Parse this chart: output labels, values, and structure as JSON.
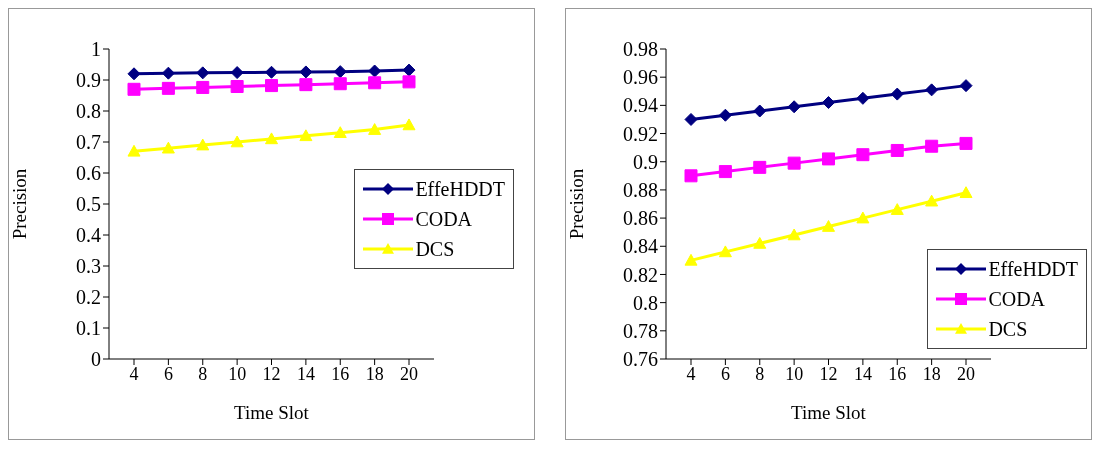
{
  "chart_data": [
    {
      "type": "line",
      "xlabel": "Time Slot",
      "ylabel": "Precision",
      "categories": [
        "4",
        "6",
        "8",
        "10",
        "12",
        "14",
        "16",
        "18",
        "20"
      ],
      "ylim": [
        0,
        1
      ],
      "yticks": [
        0,
        0.1,
        0.2,
        0.3,
        0.4,
        0.5,
        0.6,
        0.7,
        0.8,
        0.9,
        1
      ],
      "grid": false,
      "legend": "right",
      "series": [
        {
          "name": "EffeHDDT",
          "color": "#000080",
          "marker": "diamond",
          "values": [
            0.92,
            0.922,
            0.923,
            0.924,
            0.925,
            0.926,
            0.927,
            0.929,
            0.932
          ]
        },
        {
          "name": "CODA",
          "color": "#ff00ff",
          "marker": "square",
          "values": [
            0.87,
            0.873,
            0.876,
            0.879,
            0.882,
            0.885,
            0.888,
            0.891,
            0.894
          ]
        },
        {
          "name": "DCS",
          "color": "#ffff00",
          "marker": "triangle",
          "values": [
            0.67,
            0.68,
            0.69,
            0.7,
            0.71,
            0.72,
            0.73,
            0.74,
            0.755
          ]
        }
      ]
    },
    {
      "type": "line",
      "xlabel": "Time Slot",
      "ylabel": "Precision",
      "categories": [
        "4",
        "6",
        "8",
        "10",
        "12",
        "14",
        "16",
        "18",
        "20"
      ],
      "ylim": [
        0.76,
        0.98
      ],
      "yticks": [
        0.76,
        0.78,
        0.8,
        0.82,
        0.84,
        0.86,
        0.88,
        0.9,
        0.92,
        0.94,
        0.96,
        0.98
      ],
      "grid": false,
      "legend": "bottom right",
      "series": [
        {
          "name": "EffeHDDT",
          "color": "#000080",
          "marker": "diamond",
          "values": [
            0.93,
            0.933,
            0.936,
            0.939,
            0.942,
            0.945,
            0.948,
            0.951,
            0.954
          ]
        },
        {
          "name": "CODA",
          "color": "#ff00ff",
          "marker": "square",
          "values": [
            0.89,
            0.893,
            0.896,
            0.899,
            0.902,
            0.905,
            0.908,
            0.911,
            0.913
          ]
        },
        {
          "name": "DCS",
          "color": "#ffff00",
          "marker": "triangle",
          "values": [
            0.83,
            0.836,
            0.842,
            0.848,
            0.854,
            0.86,
            0.866,
            0.872,
            0.878
          ]
        }
      ]
    }
  ]
}
